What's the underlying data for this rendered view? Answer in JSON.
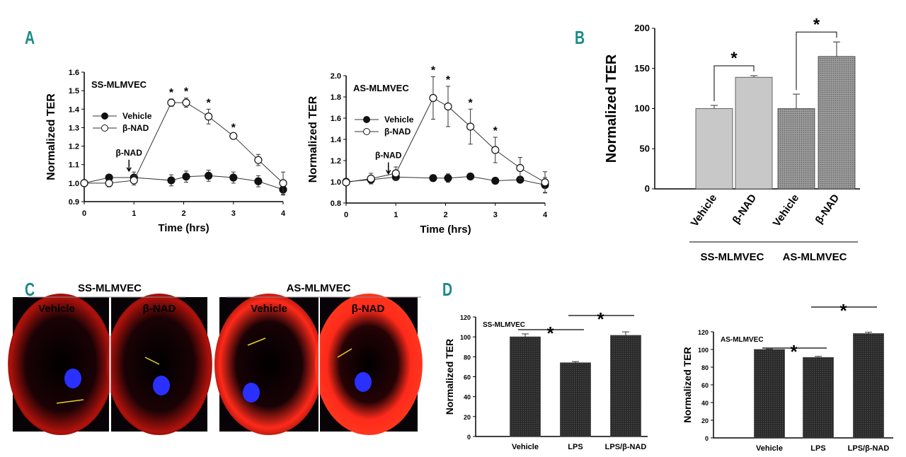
{
  "panel_labels": {
    "a": "A",
    "b": "B",
    "c": "C",
    "d": "D"
  },
  "colors": {
    "panel_label": "#1a8a8a",
    "bar_light": "#c8c8c8",
    "bar_dark": "#2b2b2b",
    "bar_hatched": "#8e8e8e",
    "actin": "#ff2a1a",
    "nucleus": "#2a30ff",
    "arrow": "#e8d020"
  },
  "chart_data": [
    {
      "id": "A-left",
      "type": "line",
      "title": "SS-MLMVEC",
      "xlabel": "Time (hrs)",
      "ylabel": "Normalized TER",
      "xlim": [
        0,
        4
      ],
      "ylim": [
        0.9,
        1.6
      ],
      "xticks": [
        "0",
        "1",
        "2",
        "3",
        "4"
      ],
      "yticks": [
        "0.9",
        "1.0",
        "1.1",
        "1.2",
        "1.3",
        "1.4",
        "1.5",
        "1.6"
      ],
      "legend": "top-left",
      "annotation": "β-NAD",
      "annotation_x": 0.9,
      "series": [
        {
          "name": "Vehicle",
          "marker": "filled",
          "x": [
            0,
            0.5,
            1,
            1.75,
            2.05,
            2.5,
            3,
            3.5,
            4
          ],
          "y": [
            1.0,
            1.03,
            1.03,
            1.015,
            1.035,
            1.04,
            1.03,
            1.01,
            0.965
          ],
          "err": [
            0.005,
            0.015,
            0.03,
            0.03,
            0.03,
            0.03,
            0.03,
            0.03,
            0.03
          ]
        },
        {
          "name": "β-NAD",
          "marker": "open",
          "x": [
            0,
            0.5,
            1,
            1.75,
            2.05,
            2.5,
            3,
            3.5,
            4
          ],
          "y": [
            1.0,
            1.0,
            1.015,
            1.435,
            1.435,
            1.36,
            1.255,
            1.125,
            1.0
          ],
          "err": [
            0.005,
            0.02,
            0.025,
            0.02,
            0.025,
            0.04,
            0.01,
            0.03,
            0.06
          ]
        }
      ],
      "significance": [
        1.75,
        2.05,
        2.5,
        3
      ],
      "sig_label": "*"
    },
    {
      "id": "A-right",
      "type": "line",
      "title": "AS-MLMVEC",
      "xlabel": "Time (hrs)",
      "ylabel": "Normalized TER",
      "xlim": [
        0,
        4
      ],
      "ylim": [
        0.8,
        2.0
      ],
      "xticks": [
        "0",
        "1",
        "2",
        "3",
        "4"
      ],
      "yticks": [
        "0.8",
        "1.0",
        "1.2",
        "1.4",
        "1.6",
        "1.8",
        "2.0"
      ],
      "legend": "top-left",
      "annotation": "β-NAD",
      "annotation_x": 0.85,
      "series": [
        {
          "name": "Vehicle",
          "marker": "filled",
          "x": [
            0,
            0.5,
            1,
            1.75,
            2.05,
            2.5,
            3,
            3.5,
            4
          ],
          "y": [
            1.0,
            1.02,
            1.045,
            1.035,
            1.035,
            1.05,
            1.01,
            1.02,
            0.97
          ],
          "err": [
            0.01,
            0.03,
            0.03,
            0.01,
            0.04,
            0.01,
            0.02,
            0.02,
            0.07
          ]
        },
        {
          "name": "β-NAD",
          "marker": "open",
          "x": [
            0,
            0.5,
            1,
            1.75,
            2.05,
            2.5,
            3,
            3.5,
            4
          ],
          "y": [
            0.995,
            1.03,
            1.08,
            1.79,
            1.71,
            1.52,
            1.3,
            1.13,
            0.995
          ],
          "err": [
            0.01,
            0.05,
            0.06,
            0.2,
            0.19,
            0.165,
            0.12,
            0.1,
            0.1
          ]
        }
      ],
      "significance": [
        1.75,
        2.05,
        2.5,
        3
      ],
      "sig_label": "*"
    },
    {
      "id": "B",
      "type": "bar",
      "ylabel": "Normalized TER",
      "ylim": [
        0,
        200
      ],
      "yticks": [
        "0",
        "50",
        "100",
        "150",
        "200"
      ],
      "categories": [
        "Vehicle",
        "β-NAD",
        "Vehicle",
        "β-NAD"
      ],
      "values": [
        100,
        139,
        100,
        165
      ],
      "err": [
        4,
        2,
        18,
        18
      ],
      "groups": [
        "SS-MLMVEC",
        "AS-MLMVEC"
      ],
      "significance": [
        [
          0,
          1
        ],
        [
          2,
          3
        ]
      ],
      "sig_label": "*"
    },
    {
      "id": "D-left",
      "type": "bar",
      "title": "SS-MLMVEC",
      "ylabel": "Normalized TER",
      "ylim": [
        0,
        120
      ],
      "yticks": [
        "0",
        "20",
        "40",
        "60",
        "80",
        "100",
        "120"
      ],
      "categories": [
        "Vehicle",
        "LPS",
        "LPS/β-NAD"
      ],
      "values": [
        100,
        74,
        101.5
      ],
      "err": [
        3,
        1.2,
        3.5
      ],
      "significance": [
        [
          0,
          1
        ],
        [
          1,
          2
        ]
      ],
      "sig_label": "*"
    },
    {
      "id": "D-right",
      "type": "bar",
      "title": "AS-MLMVEC",
      "ylabel": "Normalized TER",
      "ylim": [
        0,
        120
      ],
      "yticks": [
        "0",
        "20",
        "40",
        "60",
        "80",
        "100",
        "120"
      ],
      "categories": [
        "Vehicle",
        "LPS",
        "LPS/β-NAD"
      ],
      "values": [
        100,
        91,
        118
      ],
      "err": [
        0.5,
        1.2,
        1.5
      ],
      "significance": [
        [
          0,
          1
        ],
        [
          1,
          2
        ]
      ],
      "sig_label": "*"
    }
  ],
  "panel_c": {
    "groups": [
      {
        "title": "SS-MLMVEC",
        "labels": [
          "Vehicle",
          "β-NAD"
        ]
      },
      {
        "title": "AS-MLMVEC",
        "labels": [
          "Vehicle",
          "β-NAD"
        ]
      }
    ]
  }
}
